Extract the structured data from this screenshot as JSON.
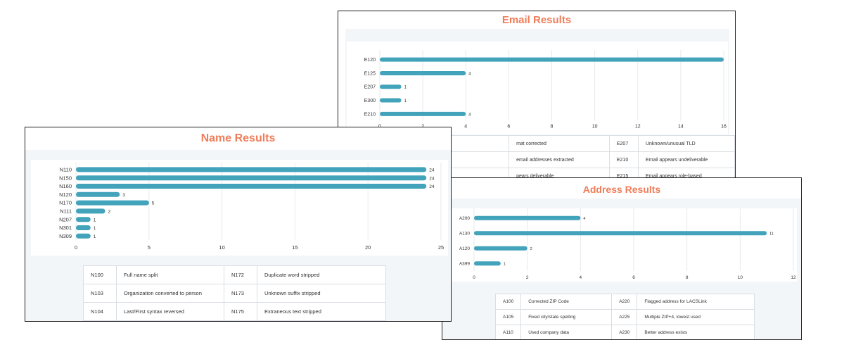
{
  "colors": {
    "bar": "#42a3bb",
    "title": "#ef7d5a",
    "panel_bg": "#f3f6f9",
    "grid": "#e6e9ec"
  },
  "email": {
    "title": "Email Results",
    "codes_rows": [
      [
        "",
        "mat corrected",
        "E207",
        "Unknown/unusual TLD"
      ],
      [
        "",
        "email addresses extracted",
        "E210",
        "Email appears undeliverable"
      ],
      [
        "",
        "pears deliverable",
        "E215",
        "Email appears role-based"
      ]
    ]
  },
  "name": {
    "title": "Name Results",
    "codes_rows": [
      [
        "N100",
        "Full name split",
        "N172",
        "Duplicate word stripped"
      ],
      [
        "N103",
        "Organization converted to person",
        "N173",
        "Unknown suffix stripped"
      ],
      [
        "N104",
        "Last/First syntax reversed",
        "N175",
        "Extraneous text stripped"
      ]
    ]
  },
  "address": {
    "title": "Address Results",
    "codes_rows": [
      [
        "A100",
        "Corrected ZIP Code",
        "A220",
        "Flagged address for LACSLink"
      ],
      [
        "A105",
        "Fixed city/state spelling",
        "A225",
        "Multiple ZIP+4, lowest used"
      ],
      [
        "A110",
        "Used company data",
        "A230",
        "Better address exists"
      ]
    ]
  },
  "chart_data": [
    {
      "type": "bar",
      "orientation": "horizontal",
      "title": "Email Results",
      "categories": [
        "E120",
        "E125",
        "E207",
        "E300",
        "E210"
      ],
      "values": [
        16,
        4,
        1,
        1,
        4
      ],
      "data_labels": [
        "",
        "4",
        "1",
        "1",
        "4"
      ],
      "xlim": [
        0,
        16
      ],
      "xticks": [
        0,
        2,
        4,
        6,
        8,
        10,
        12,
        14,
        16
      ],
      "grid": true
    },
    {
      "type": "bar",
      "orientation": "horizontal",
      "title": "Name Results",
      "categories": [
        "N110",
        "N150",
        "N160",
        "N120",
        "N170",
        "N111",
        "N207",
        "N301",
        "N309"
      ],
      "values": [
        24,
        24,
        24,
        3,
        5,
        2,
        1,
        1,
        1
      ],
      "data_labels": [
        "24",
        "24",
        "24",
        "3",
        "5",
        "2",
        "1",
        "1",
        "1"
      ],
      "xlim": [
        0,
        25
      ],
      "xticks": [
        0,
        5,
        10,
        15,
        20,
        25
      ],
      "grid": true
    },
    {
      "type": "bar",
      "orientation": "horizontal",
      "title": "Address Results",
      "categories": [
        "A200",
        "A130",
        "A120",
        "A399"
      ],
      "values": [
        4,
        11,
        2,
        1
      ],
      "data_labels": [
        "4",
        "11",
        "2",
        "1"
      ],
      "xlim": [
        0,
        12
      ],
      "xticks": [
        0,
        2,
        4,
        6,
        8,
        10,
        12
      ],
      "grid": true
    }
  ]
}
